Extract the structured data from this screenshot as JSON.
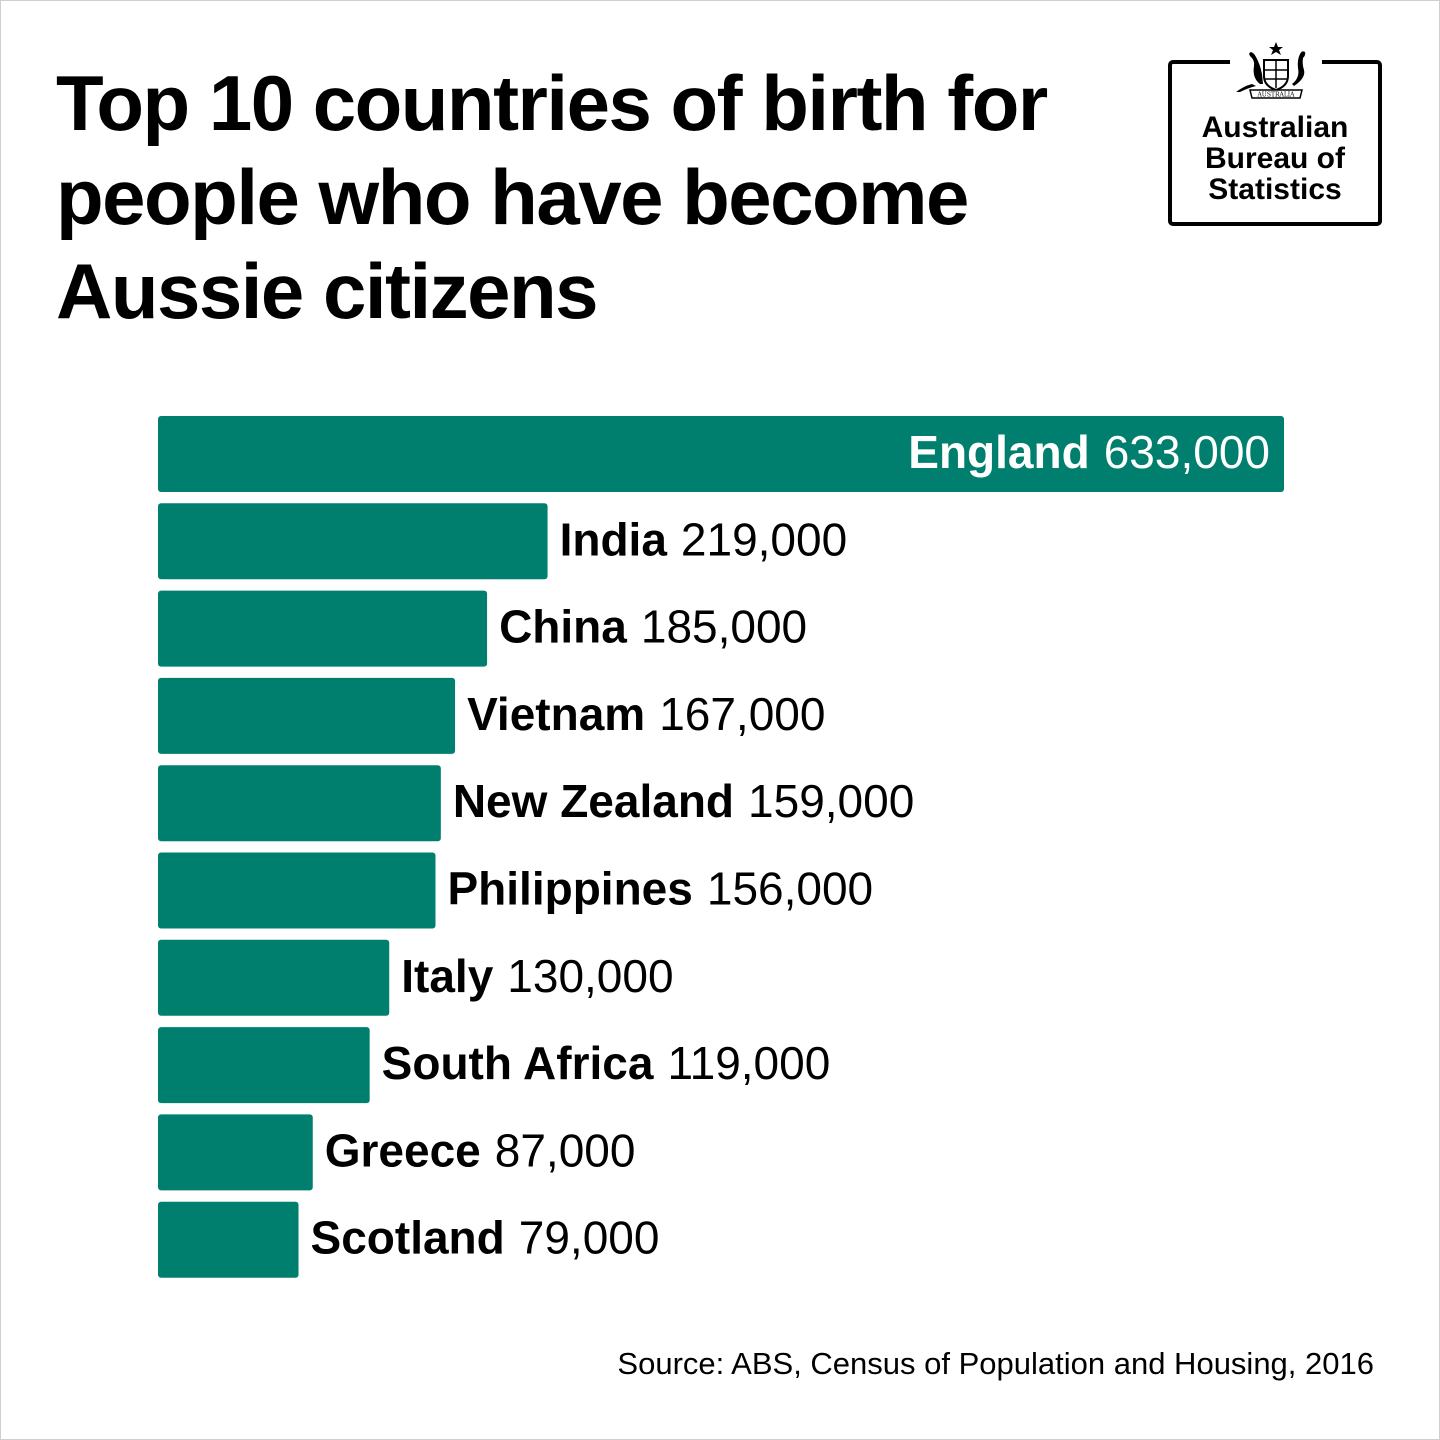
{
  "title": "Top 10 countries of birth for people who have become Aussie citizens",
  "logo": {
    "lines": [
      "Australian",
      "Bureau of",
      "Statistics"
    ],
    "crest_text": "AUSTRALIA"
  },
  "source": "Source: ABS, Census of Population and Housing, 2016",
  "colors": {
    "bar": "#007f6e",
    "text": "#000000",
    "label_inside": "#ffffff"
  },
  "chart_data": {
    "type": "bar",
    "orientation": "horizontal",
    "title": "Top 10 countries of birth for people who have become Aussie citizens",
    "categories": [
      "England",
      "India",
      "China",
      "Vietnam",
      "New Zealand",
      "Philippines",
      "Italy",
      "South Africa",
      "Greece",
      "Scotland"
    ],
    "values": [
      633000,
      219000,
      185000,
      167000,
      159000,
      156000,
      130000,
      119000,
      87000,
      79000
    ],
    "value_labels": [
      "633,000",
      "219,000",
      "185,000",
      "167,000",
      "159,000",
      "156,000",
      "130,000",
      "119,000",
      "87,000",
      "79,000"
    ],
    "xlim": [
      0,
      633000
    ],
    "grid": false,
    "legend": "none"
  }
}
